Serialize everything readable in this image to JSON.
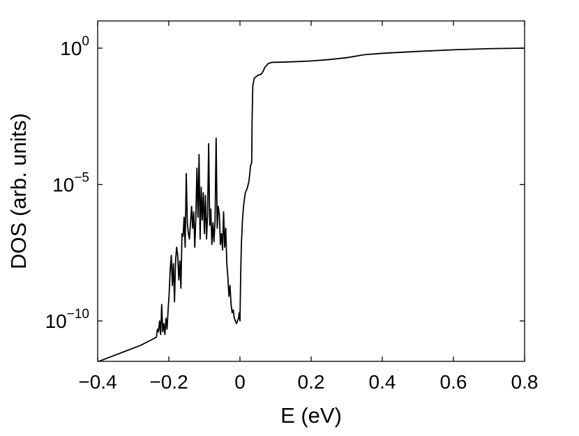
{
  "chart_data": {
    "type": "line",
    "title": "",
    "xlabel": "E (eV)",
    "ylabel": "DOS (arb. units)",
    "y_scale": "log",
    "xlim": [
      -0.4,
      0.8
    ],
    "ylim_exponent": [
      -11.5,
      1
    ],
    "x_ticks": [
      {
        "value": -0.4,
        "label": "−0.4"
      },
      {
        "value": -0.2,
        "label": "−0.2"
      },
      {
        "value": 0,
        "label": "0"
      },
      {
        "value": 0.2,
        "label": "0.2"
      },
      {
        "value": 0.4,
        "label": "0.4"
      },
      {
        "value": 0.6,
        "label": "0.6"
      },
      {
        "value": 0.8,
        "label": "0.8"
      }
    ],
    "y_ticks": [
      {
        "exponent": 0,
        "base": "10",
        "power": "0"
      },
      {
        "exponent": -5,
        "base": "10",
        "power": "−5"
      },
      {
        "exponent": -10,
        "base": "10",
        "power": "−10"
      }
    ],
    "grid": false,
    "legend": "none",
    "line_color": "#000000",
    "series": [
      {
        "x": [
          -0.4,
          -0.36,
          -0.32,
          -0.28,
          -0.25,
          -0.235,
          -0.232,
          -0.229,
          -0.226,
          -0.223,
          -0.22,
          -0.217,
          -0.214,
          -0.211,
          -0.208,
          -0.205,
          -0.202,
          -0.199,
          -0.196,
          -0.193,
          -0.19,
          -0.187,
          -0.184,
          -0.181,
          -0.178,
          -0.175,
          -0.172,
          -0.169,
          -0.166,
          -0.163,
          -0.16,
          -0.157,
          -0.154,
          -0.151,
          -0.148,
          -0.145,
          -0.142,
          -0.139,
          -0.136,
          -0.133,
          -0.13,
          -0.127,
          -0.124,
          -0.121,
          -0.118,
          -0.115,
          -0.112,
          -0.109,
          -0.106,
          -0.103,
          -0.1,
          -0.097,
          -0.094,
          -0.091,
          -0.088,
          -0.085,
          -0.082,
          -0.079,
          -0.076,
          -0.073,
          -0.07,
          -0.067,
          -0.064,
          -0.061,
          -0.058,
          -0.055,
          -0.052,
          -0.049,
          -0.046,
          -0.043,
          -0.04,
          -0.037,
          -0.034,
          -0.031,
          -0.028,
          -0.025,
          -0.022,
          -0.019,
          -0.016,
          -0.013,
          -0.01,
          -0.007,
          -0.004,
          -0.002,
          0.0,
          0.002,
          0.004,
          0.007,
          0.01,
          0.015,
          0.02,
          0.025,
          0.03,
          0.033,
          0.034,
          0.036,
          0.04,
          0.05,
          0.06,
          0.065,
          0.07,
          0.08,
          0.09,
          0.1,
          0.15,
          0.2,
          0.25,
          0.3,
          0.35,
          0.4,
          0.5,
          0.6,
          0.7,
          0.8
        ],
        "y_exponent": [
          -11.5,
          -11.3,
          -11.1,
          -10.9,
          -10.7,
          -10.6,
          -10.3,
          -10.4,
          -10.0,
          -10.5,
          -9.4,
          -10.4,
          -10.1,
          -10.5,
          -9.9,
          -10.3,
          -9.6,
          -9.0,
          -8.1,
          -7.6,
          -8.7,
          -7.9,
          -9.3,
          -7.8,
          -7.3,
          -7.6,
          -8.5,
          -7.8,
          -8.8,
          -6.8,
          -6.9,
          -6.2,
          -7.3,
          -4.6,
          -6.4,
          -6.8,
          -7.0,
          -6.4,
          -5.8,
          -6.6,
          -6.0,
          -7.3,
          -6.2,
          -4.4,
          -6.2,
          -3.9,
          -7.0,
          -5.1,
          -6.3,
          -5.3,
          -6.8,
          -5.4,
          -7.0,
          -6.1,
          -3.5,
          -6.5,
          -5.9,
          -7.2,
          -6.4,
          -7.1,
          -6.3,
          -3.3,
          -6.6,
          -5.8,
          -6.1,
          -7.2,
          -6.8,
          -7.4,
          -6.0,
          -7.3,
          -6.6,
          -7.9,
          -8.4,
          -9.1,
          -8.7,
          -9.4,
          -9.7,
          -9.6,
          -9.9,
          -10.0,
          -10.1,
          -10.0,
          -9.9,
          -9.7,
          -10.0,
          -8.3,
          -7.2,
          -6.3,
          -5.8,
          -5.3,
          -5.15,
          -4.9,
          -4.3,
          -4.2,
          -2.7,
          -1.4,
          -1.1,
          -1.0,
          -0.95,
          -0.85,
          -0.7,
          -0.56,
          -0.52,
          -0.52,
          -0.5,
          -0.47,
          -0.42,
          -0.35,
          -0.24,
          -0.19,
          -0.12,
          -0.06,
          -0.02,
          0.0
        ]
      }
    ]
  }
}
